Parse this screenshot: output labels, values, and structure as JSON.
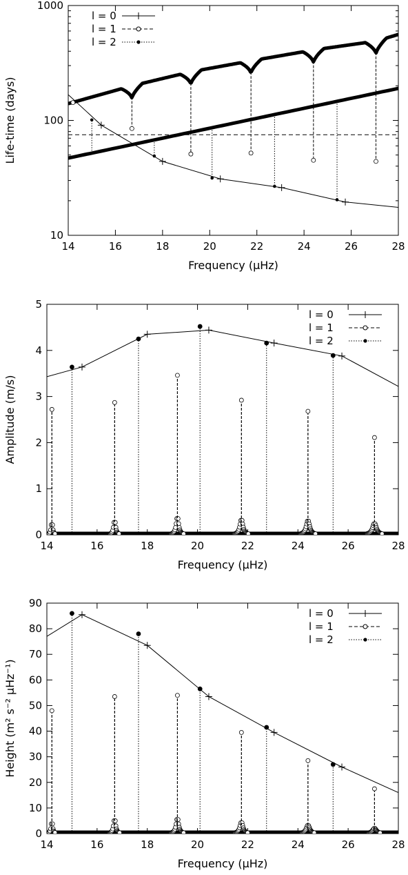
{
  "chart_data": [
    {
      "type": "line",
      "xlabel": "Frequency (μHz)",
      "ylabel": "Life-time (days)",
      "xlim": [
        14,
        28
      ],
      "ylim": [
        10,
        1000
      ],
      "yscale": "log",
      "xticks": [
        "14",
        "16",
        "18",
        "20",
        "22",
        "24",
        "26",
        "28"
      ],
      "yticks": [
        "10",
        "100",
        "1000"
      ],
      "legend_position": "top-left",
      "legend": [
        "l = 0",
        "l = 1",
        "l = 2"
      ],
      "hline": 75,
      "series": [
        {
          "name": "l = 0",
          "marker": "plus",
          "x": [
            13.9,
            15.4,
            18.0,
            20.45,
            23.05,
            25.75,
            28.0
          ],
          "y": [
            175,
            91,
            44,
            31,
            26,
            19.5,
            17.5
          ]
        },
        {
          "name": "l = 1",
          "marker": "open-circle",
          "x": [
            14.2,
            16.7,
            19.2,
            21.75,
            24.4,
            27.05
          ],
          "y": [
            143,
            85,
            51,
            52,
            45,
            44
          ]
        },
        {
          "name": "l = 2",
          "marker": "filled-dot",
          "x": [
            15.0,
            17.65,
            20.1,
            22.75,
            25.4
          ],
          "y": [
            101,
            49,
            31.5,
            26.7,
            20.4
          ]
        }
      ],
      "l1_envelope": {
        "x": [
          14.0,
          16.7,
          19.2,
          21.75,
          24.4,
          27.05,
          28.0
        ],
        "y": [
          140,
          200,
          265,
          330,
          410,
          490,
          560
        ]
      },
      "l2_envelope": {
        "x": [
          14.0,
          28.0
        ],
        "y": [
          47,
          190
        ]
      }
    },
    {
      "type": "line",
      "xlabel": "Frequency (μHz)",
      "ylabel": "Amplitude (m/s)",
      "xlim": [
        14,
        28
      ],
      "ylim": [
        0,
        5
      ],
      "xticks": [
        "14",
        "16",
        "18",
        "20",
        "22",
        "24",
        "26",
        "28"
      ],
      "yticks": [
        "0",
        "1",
        "2",
        "3",
        "4",
        "5"
      ],
      "legend_position": "top-right",
      "legend": [
        "l = 0",
        "l = 1",
        "l = 2"
      ],
      "series": [
        {
          "name": "l = 0",
          "marker": "plus",
          "x": [
            14.0,
            15.4,
            18.0,
            20.45,
            23.05,
            25.75,
            28.0
          ],
          "y": [
            3.43,
            3.64,
            4.35,
            4.44,
            4.16,
            3.88,
            3.22
          ]
        },
        {
          "name": "l = 1",
          "marker": "open-circle",
          "x": [
            14.2,
            16.7,
            19.2,
            21.75,
            24.4,
            27.05
          ],
          "y": [
            2.72,
            2.87,
            3.46,
            2.92,
            2.68,
            2.11
          ]
        },
        {
          "name": "l = 2",
          "marker": "filled-dot",
          "x": [
            15.0,
            17.65,
            20.1,
            22.75,
            25.4
          ],
          "y": [
            3.64,
            4.25,
            4.52,
            4.16,
            3.89
          ]
        }
      ]
    },
    {
      "type": "line",
      "xlabel": "Frequency (μHz)",
      "ylabel": "Height (m² s⁻² μHz⁻¹)",
      "xlim": [
        14,
        28
      ],
      "ylim": [
        0,
        90
      ],
      "xticks": [
        "14",
        "16",
        "18",
        "20",
        "22",
        "24",
        "26",
        "28"
      ],
      "yticks": [
        "0",
        "10",
        "20",
        "30",
        "40",
        "50",
        "60",
        "70",
        "80",
        "90"
      ],
      "legend_position": "top-right",
      "legend": [
        "l = 0",
        "l = 1",
        "l = 2"
      ],
      "series": [
        {
          "name": "l = 0",
          "marker": "plus",
          "x": [
            14.0,
            15.4,
            18.0,
            20.45,
            23.05,
            25.75,
            28.0
          ],
          "y": [
            77,
            85.5,
            73.5,
            53.5,
            39.5,
            26,
            16
          ]
        },
        {
          "name": "l = 1",
          "marker": "open-circle",
          "x": [
            14.2,
            16.7,
            19.2,
            21.75,
            24.4,
            27.05
          ],
          "y": [
            48,
            53.5,
            54,
            39.5,
            28.5,
            17.5
          ]
        },
        {
          "name": "l = 2",
          "marker": "filled-dot",
          "x": [
            15.0,
            17.65,
            20.1,
            22.75,
            25.4
          ],
          "y": [
            86,
            78,
            56.5,
            41.5,
            27
          ]
        }
      ]
    }
  ]
}
